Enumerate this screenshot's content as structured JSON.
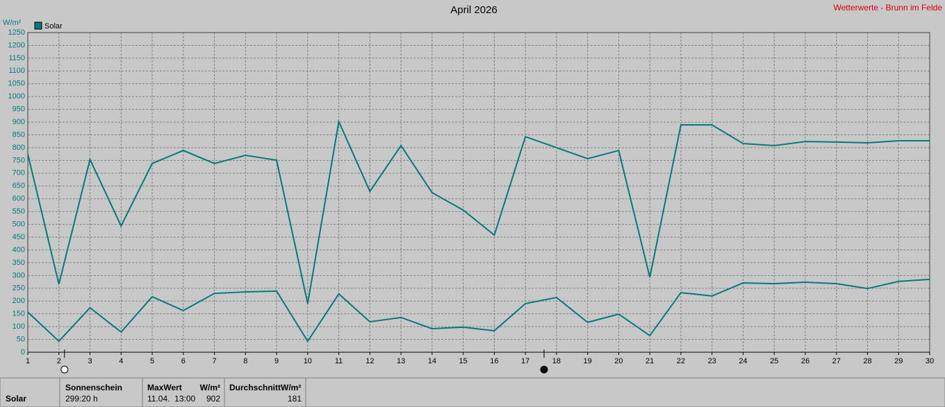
{
  "chart_data": {
    "type": "line",
    "title": "April 2026",
    "source": "Wetterwerte - Brunn im Felde",
    "y_label": "W/m²",
    "x": [
      1,
      2,
      3,
      4,
      5,
      6,
      7,
      8,
      9,
      10,
      11,
      12,
      13,
      14,
      15,
      16,
      17,
      18,
      19,
      20,
      21,
      22,
      23,
      24,
      25,
      26,
      27,
      28,
      29,
      30
    ],
    "series": [
      {
        "name": "Solar",
        "color": "#007b7b",
        "values": [
          775,
          266,
          754,
          494,
          738,
          789,
          738,
          770,
          751,
          190,
          902,
          629,
          808,
          624,
          556,
          458,
          843,
          800,
          757,
          789,
          293,
          889,
          889,
          816,
          808,
          824,
          822,
          819,
          827,
          827
        ]
      },
      {
        "color": "#007b7b",
        "values": [
          157,
          43,
          174,
          79,
          217,
          163,
          230,
          236,
          239,
          43,
          228,
          119,
          136,
          92,
          98,
          84,
          190,
          214,
          117,
          149,
          65,
          233,
          220,
          271,
          268,
          274,
          268,
          249,
          277,
          285
        ]
      }
    ],
    "xlim": [
      1,
      30
    ],
    "xticks": [
      1,
      2,
      3,
      4,
      5,
      6,
      7,
      8,
      9,
      10,
      11,
      12,
      13,
      14,
      15,
      16,
      17,
      18,
      19,
      20,
      21,
      22,
      23,
      24,
      25,
      26,
      27,
      28,
      29,
      30
    ],
    "ylim": [
      0,
      1250
    ],
    "yticks": [
      0,
      50,
      100,
      150,
      200,
      250,
      300,
      350,
      400,
      450,
      500,
      550,
      600,
      650,
      700,
      750,
      800,
      850,
      900,
      950,
      1000,
      1050,
      1100,
      1150,
      1200,
      1250
    ],
    "grid": true,
    "markers": [
      {
        "x": 2.18,
        "symbol": "open"
      },
      {
        "x": 17.6,
        "symbol": "filled"
      }
    ]
  },
  "stats": {
    "row_label": "Solar",
    "sunshine": {
      "header": "Sonnenschein",
      "value": "299:20 h"
    },
    "max": {
      "header": "MaxWert",
      "unit": "W/m²",
      "time": "11.04.  13:00",
      "value": 902
    },
    "average": {
      "header": "DurchschnittW/m²",
      "value": 181
    }
  }
}
